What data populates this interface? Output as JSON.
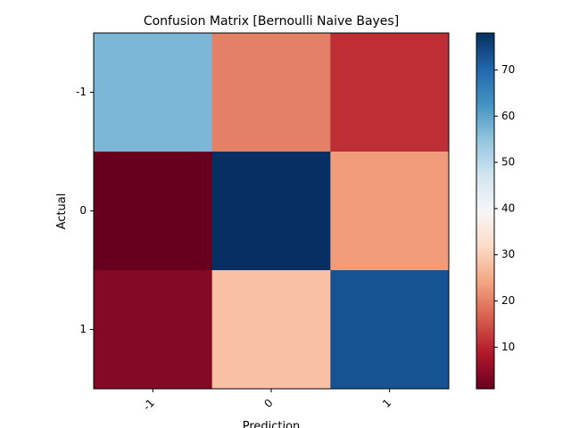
{
  "chart_data": {
    "type": "heatmap",
    "title": "Confusion Matrix [Bernoulli Naive Bayes]",
    "xlabel": "Prediction",
    "ylabel": "Actual",
    "x_categories": [
      "-1",
      "0",
      "1"
    ],
    "y_categories": [
      "-1",
      "0",
      "1"
    ],
    "values": [
      [
        57,
        20,
        11
      ],
      [
        1,
        78,
        23
      ],
      [
        4,
        28,
        73
      ]
    ],
    "colormap": "RdBu",
    "colorbar": {
      "min": 1,
      "max": 78,
      "ticks": [
        10,
        20,
        30,
        40,
        50,
        60,
        70
      ]
    }
  }
}
